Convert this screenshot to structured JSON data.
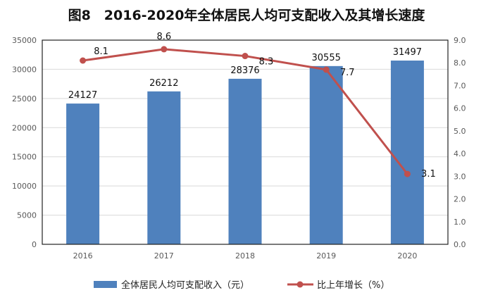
{
  "chart_data": {
    "type": "bar",
    "title": "图8　2016-2020年全体居民人均可支配收入及其增长速度",
    "categories": [
      "2016",
      "2017",
      "2018",
      "2019",
      "2020"
    ],
    "series": [
      {
        "name": "全体居民人均可支配收入（元）",
        "type": "bar",
        "axis": "left",
        "values": [
          24127,
          26212,
          28376,
          30555,
          31497
        ],
        "color": "#4f81bd"
      },
      {
        "name": "比上年增长（%）",
        "type": "line",
        "axis": "right",
        "values": [
          8.1,
          8.6,
          8.3,
          7.7,
          3.1
        ],
        "color": "#c0504d"
      }
    ],
    "ylim_left": [
      0,
      35000
    ],
    "yticks_left": [
      "0",
      "5000",
      "10000",
      "15000",
      "20000",
      "25000",
      "30000",
      "35000"
    ],
    "ylim_right": [
      0,
      9.0
    ],
    "yticks_right": [
      "0.0",
      "1.0",
      "2.0",
      "3.0",
      "4.0",
      "5.0",
      "6.0",
      "7.0",
      "8.0",
      "9.0"
    ],
    "grid": true,
    "legend": "bottom"
  }
}
